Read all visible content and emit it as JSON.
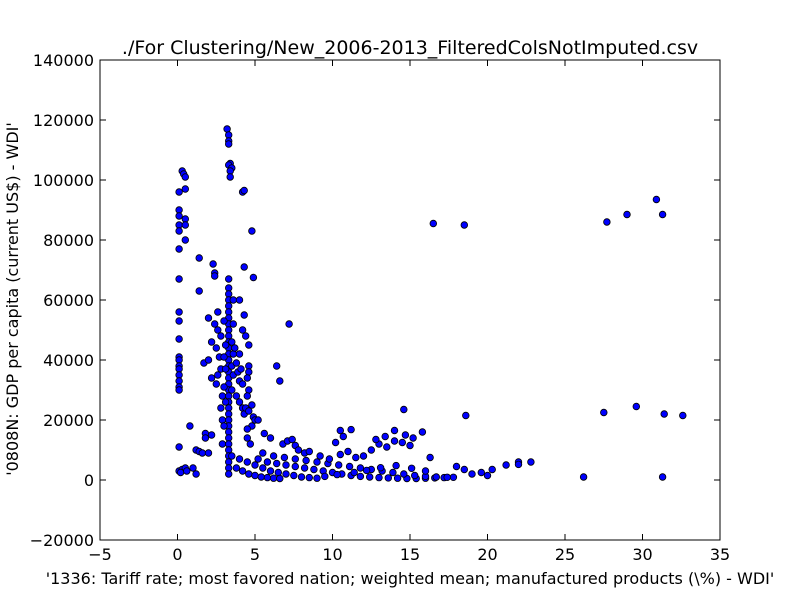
{
  "chart_data": {
    "type": "scatter",
    "title": "./For Clustering/New_2006-2013_FilteredColsNotImputed.csv",
    "xlabel": "'1336: Tariff rate; most favored nation; weighted mean; manufactured products  (\\%) - WDI'",
    "ylabel": "'0808N: GDP per capita  (current US$) - WDI'",
    "xlim": [
      -5,
      35
    ],
    "ylim": [
      -20000,
      140000
    ],
    "xticks": [
      -5,
      0,
      5,
      10,
      15,
      20,
      25,
      30,
      35
    ],
    "yticks": [
      -20000,
      0,
      20000,
      40000,
      60000,
      80000,
      100000,
      120000,
      140000
    ],
    "xtick_labels": [
      "−5",
      "0",
      "5",
      "10",
      "15",
      "20",
      "25",
      "30",
      "35"
    ],
    "ytick_labels": [
      "−20000",
      "0",
      "20000",
      "40000",
      "60000",
      "80000",
      "100000",
      "120000",
      "140000"
    ],
    "grid": false,
    "marker_color": "#0000ff",
    "marker_edge": "#000000",
    "points": [
      [
        0.1,
        96000
      ],
      [
        0.1,
        90000
      ],
      [
        0.1,
        88000
      ],
      [
        0.1,
        85000
      ],
      [
        0.1,
        83000
      ],
      [
        0.1,
        77000
      ],
      [
        0.1,
        67000
      ],
      [
        0.1,
        56000
      ],
      [
        0.1,
        53000
      ],
      [
        0.1,
        47000
      ],
      [
        0.1,
        41000
      ],
      [
        0.1,
        40000
      ],
      [
        0.1,
        38000
      ],
      [
        0.1,
        37000
      ],
      [
        0.1,
        35000
      ],
      [
        0.1,
        33000
      ],
      [
        0.1,
        31000
      ],
      [
        0.1,
        30000
      ],
      [
        0.1,
        11000
      ],
      [
        0.3,
        103000
      ],
      [
        0.4,
        102000
      ],
      [
        0.5,
        101000
      ],
      [
        0.5,
        97000
      ],
      [
        0.5,
        87000
      ],
      [
        0.5,
        85000
      ],
      [
        0.5,
        80000
      ],
      [
        0.1,
        3000
      ],
      [
        0.3,
        3500
      ],
      [
        0.5,
        4000
      ],
      [
        0.2,
        2500
      ],
      [
        0.6,
        3000
      ],
      [
        0.8,
        18000
      ],
      [
        1.0,
        4000
      ],
      [
        1.2,
        2000
      ],
      [
        1.2,
        10000
      ],
      [
        1.4,
        9500
      ],
      [
        1.6,
        9000
      ],
      [
        1.4,
        74000
      ],
      [
        1.4,
        63000
      ],
      [
        1.8,
        15500
      ],
      [
        1.8,
        14000
      ],
      [
        2.2,
        15000
      ],
      [
        2.0,
        9000
      ],
      [
        1.7,
        39000
      ],
      [
        2.0,
        40000
      ],
      [
        2.2,
        46000
      ],
      [
        2.0,
        54000
      ],
      [
        2.4,
        52000
      ],
      [
        2.6,
        50000
      ],
      [
        2.3,
        72000
      ],
      [
        2.4,
        69000
      ],
      [
        2.4,
        68000
      ],
      [
        2.6,
        56000
      ],
      [
        2.8,
        48000
      ],
      [
        2.5,
        44000
      ],
      [
        2.7,
        41000
      ],
      [
        2.8,
        37000
      ],
      [
        2.2,
        34000
      ],
      [
        2.5,
        32000
      ],
      [
        2.9,
        28000
      ],
      [
        2.8,
        24000
      ],
      [
        2.6,
        35000
      ],
      [
        2.9,
        20000
      ],
      [
        2.9,
        12000
      ],
      [
        3.2,
        117000
      ],
      [
        3.3,
        115000
      ],
      [
        3.3,
        113000
      ],
      [
        3.3,
        112000
      ],
      [
        3.4,
        105500
      ],
      [
        3.3,
        105000
      ],
      [
        3.5,
        104000
      ],
      [
        3.4,
        103000
      ],
      [
        3.4,
        101000
      ],
      [
        3.3,
        67000
      ],
      [
        3.3,
        64000
      ],
      [
        3.3,
        62000
      ],
      [
        3.3,
        60000
      ],
      [
        3.3,
        58000
      ],
      [
        3.3,
        56000
      ],
      [
        3.3,
        54000
      ],
      [
        3.3,
        52000
      ],
      [
        3.3,
        50000
      ],
      [
        3.3,
        48000
      ],
      [
        3.3,
        46000
      ],
      [
        3.3,
        44000
      ],
      [
        3.3,
        42000
      ],
      [
        3.3,
        40000
      ],
      [
        3.3,
        38000
      ],
      [
        3.3,
        36000
      ],
      [
        3.3,
        34000
      ],
      [
        3.3,
        32000
      ],
      [
        3.3,
        30000
      ],
      [
        3.3,
        28000
      ],
      [
        3.3,
        26000
      ],
      [
        3.3,
        24000
      ],
      [
        3.3,
        22000
      ],
      [
        3.3,
        20000
      ],
      [
        3.3,
        18000
      ],
      [
        3.3,
        16000
      ],
      [
        3.3,
        14000
      ],
      [
        3.3,
        12000
      ],
      [
        3.3,
        10000
      ],
      [
        3.3,
        8000
      ],
      [
        3.3,
        6000
      ],
      [
        3.3,
        4000
      ],
      [
        3.3,
        2000
      ],
      [
        3.0,
        53000
      ],
      [
        3.1,
        45000
      ],
      [
        3.0,
        41000
      ],
      [
        3.1,
        37000
      ],
      [
        3.0,
        31000
      ],
      [
        3.1,
        26000
      ],
      [
        3.0,
        18000
      ],
      [
        3.6,
        60000
      ],
      [
        3.6,
        52000
      ],
      [
        3.5,
        46000
      ],
      [
        3.6,
        42000
      ],
      [
        3.5,
        38000
      ],
      [
        3.6,
        35000
      ],
      [
        3.5,
        30000
      ],
      [
        3.7,
        44000
      ],
      [
        3.8,
        39000
      ],
      [
        3.9,
        36000
      ],
      [
        4.0,
        42000
      ],
      [
        4.1,
        37000
      ],
      [
        4.0,
        33000
      ],
      [
        4.2,
        32000
      ],
      [
        3.8,
        28000
      ],
      [
        4.0,
        26000
      ],
      [
        4.2,
        24000
      ],
      [
        4.3,
        22000
      ],
      [
        4.2,
        96000
      ],
      [
        4.3,
        96500
      ],
      [
        4.3,
        71000
      ],
      [
        4.0,
        60000
      ],
      [
        4.3,
        55000
      ],
      [
        4.2,
        50000
      ],
      [
        4.4,
        48000
      ],
      [
        4.6,
        45000
      ],
      [
        4.6,
        38000
      ],
      [
        4.6,
        36000
      ],
      [
        4.5,
        34000
      ],
      [
        4.6,
        30000
      ],
      [
        4.5,
        28000
      ],
      [
        4.4,
        24000
      ],
      [
        4.6,
        23000
      ],
      [
        4.8,
        83000
      ],
      [
        4.9,
        67500
      ],
      [
        4.8,
        25000
      ],
      [
        4.9,
        21000
      ],
      [
        5.0,
        20000
      ],
      [
        4.8,
        18000
      ],
      [
        5.2,
        20000
      ],
      [
        4.5,
        17000
      ],
      [
        4.5,
        14000
      ],
      [
        4.7,
        12000
      ],
      [
        5.6,
        15500
      ],
      [
        6.0,
        14000
      ],
      [
        6.4,
        38000
      ],
      [
        6.6,
        33000
      ],
      [
        6.8,
        12000
      ],
      [
        7.2,
        52000
      ],
      [
        7.1,
        13000
      ],
      [
        7.4,
        13500
      ],
      [
        7.6,
        11500
      ],
      [
        7.8,
        10000
      ],
      [
        8.2,
        9000
      ],
      [
        3.5,
        8000
      ],
      [
        4.0,
        7000
      ],
      [
        4.5,
        6000
      ],
      [
        5.0,
        5000
      ],
      [
        5.5,
        4000
      ],
      [
        6.0,
        3000
      ],
      [
        6.5,
        2500
      ],
      [
        7.0,
        2000
      ],
      [
        7.5,
        1500
      ],
      [
        8.0,
        1000
      ],
      [
        8.5,
        800
      ],
      [
        9.0,
        600
      ],
      [
        3.8,
        4000
      ],
      [
        4.2,
        3000
      ],
      [
        4.6,
        2000
      ],
      [
        5.0,
        1500
      ],
      [
        5.4,
        1000
      ],
      [
        5.8,
        800
      ],
      [
        6.2,
        600
      ],
      [
        6.6,
        500
      ],
      [
        5.2,
        7000
      ],
      [
        5.8,
        6000
      ],
      [
        6.4,
        5500
      ],
      [
        7.0,
        5000
      ],
      [
        7.6,
        4500
      ],
      [
        8.2,
        4000
      ],
      [
        8.8,
        3500
      ],
      [
        9.4,
        3000
      ],
      [
        10.0,
        2500
      ],
      [
        10.6,
        2000
      ],
      [
        11.2,
        1500
      ],
      [
        11.8,
        1200
      ],
      [
        12.4,
        1000
      ],
      [
        13.0,
        800
      ],
      [
        13.6,
        700
      ],
      [
        14.2,
        600
      ],
      [
        14.8,
        500
      ],
      [
        15.4,
        500
      ],
      [
        16.0,
        600
      ],
      [
        16.6,
        700
      ],
      [
        17.2,
        800
      ],
      [
        17.8,
        900
      ],
      [
        5.5,
        9000
      ],
      [
        6.2,
        8000
      ],
      [
        6.9,
        7500
      ],
      [
        7.6,
        7000
      ],
      [
        8.3,
        6500
      ],
      [
        9.0,
        6000
      ],
      [
        9.7,
        5500
      ],
      [
        10.4,
        5000
      ],
      [
        11.1,
        4500
      ],
      [
        11.8,
        4000
      ],
      [
        12.5,
        3500
      ],
      [
        13.2,
        3000
      ],
      [
        13.9,
        2500
      ],
      [
        14.6,
        2000
      ],
      [
        15.3,
        1500
      ],
      [
        16.0,
        1200
      ],
      [
        16.7,
        1000
      ],
      [
        17.4,
        900
      ],
      [
        8.5,
        9500
      ],
      [
        9.2,
        8000
      ],
      [
        9.8,
        7000
      ],
      [
        10.5,
        8500
      ],
      [
        11.0,
        9500
      ],
      [
        11.5,
        7500
      ],
      [
        12.0,
        8000
      ],
      [
        12.5,
        10000
      ],
      [
        13.0,
        12000
      ],
      [
        13.5,
        11000
      ],
      [
        14.0,
        13000
      ],
      [
        14.5,
        12500
      ],
      [
        15.0,
        11500
      ],
      [
        10.5,
        16500
      ],
      [
        10.7,
        14500
      ],
      [
        10.2,
        12500
      ],
      [
        11.2,
        16800
      ],
      [
        12.8,
        13500
      ],
      [
        13.4,
        14500
      ],
      [
        14.0,
        16500
      ],
      [
        14.7,
        15000
      ],
      [
        15.2,
        14000
      ],
      [
        15.8,
        16000
      ],
      [
        14.6,
        23500
      ],
      [
        9.5,
        1200
      ],
      [
        10.3,
        1800
      ],
      [
        11.4,
        2500
      ],
      [
        12.2,
        3200
      ],
      [
        13.1,
        4100
      ],
      [
        14.1,
        4800
      ],
      [
        15.1,
        3900
      ],
      [
        16.0,
        3000
      ],
      [
        16.3,
        7500
      ],
      [
        16.5,
        85500
      ],
      [
        18.5,
        85000
      ],
      [
        18.6,
        21500
      ],
      [
        18.0,
        4500
      ],
      [
        18.5,
        3500
      ],
      [
        19.0,
        2000
      ],
      [
        19.6,
        2500
      ],
      [
        20.0,
        1500
      ],
      [
        20.3,
        3500
      ],
      [
        21.2,
        5000
      ],
      [
        22.0,
        6000
      ],
      [
        22.0,
        5200
      ],
      [
        22.8,
        6000
      ],
      [
        26.2,
        1000
      ],
      [
        27.5,
        22500
      ],
      [
        27.7,
        86000
      ],
      [
        29.0,
        88500
      ],
      [
        29.6,
        24500
      ],
      [
        30.9,
        93500
      ],
      [
        31.3,
        88500
      ],
      [
        31.4,
        22000
      ],
      [
        31.3,
        1000
      ],
      [
        32.6,
        21500
      ]
    ]
  }
}
